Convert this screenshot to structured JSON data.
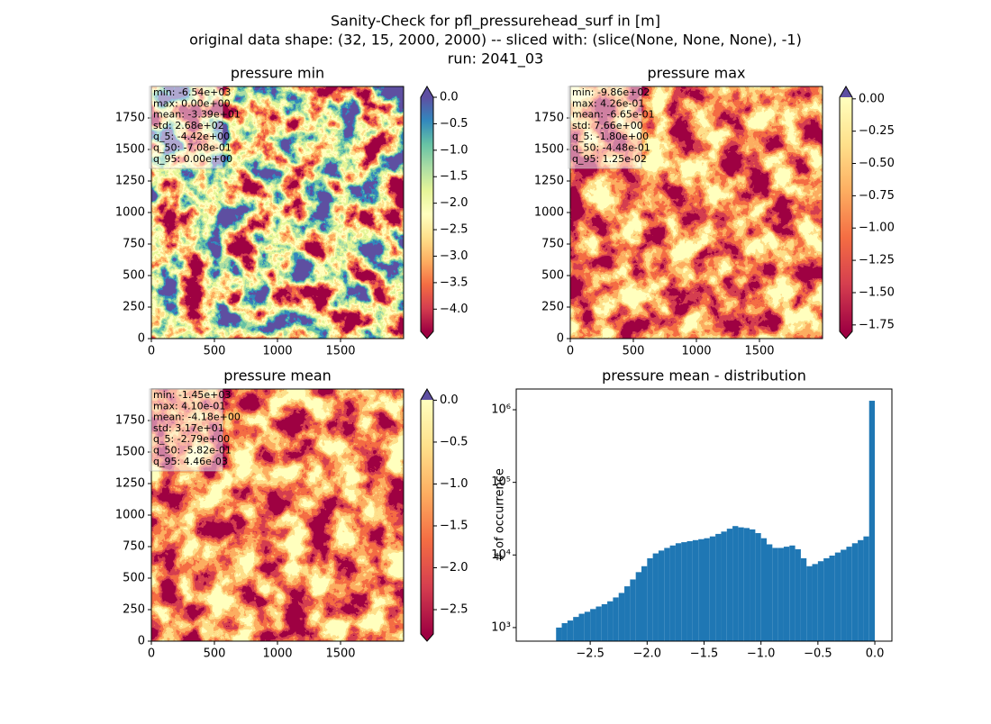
{
  "figure": {
    "title": [
      "Sanity-Check for pfl_pressurehead_surf in [m]",
      "original data shape: (32, 15, 2000, 2000) -- sliced with: (slice(None, None, None), -1)",
      "run: 2041_03"
    ]
  },
  "chart_data": [
    {
      "type": "heatmap",
      "title": "pressure min",
      "xlim": [
        0,
        2000
      ],
      "ylim": [
        0,
        2000
      ],
      "xticks": [
        0,
        500,
        1000,
        1500
      ],
      "yticks": [
        0,
        250,
        500,
        750,
        1000,
        1250,
        1500,
        1750
      ],
      "stats": [
        "min: -6.54e+03",
        "max: 0.00e+00",
        "mean: -3.39e+01",
        "std: 2.68e+02",
        "q_5: -4.42e+00",
        "q_50: -7.08e-01",
        "q_95: 0.00e+00"
      ],
      "colorbar": {
        "lim": [
          -4.42,
          0
        ],
        "ticks": [
          {
            "value": 0,
            "label": "0.0"
          },
          {
            "value": -0.5,
            "label": "−0.5"
          },
          {
            "value": -1,
            "label": "−1.0"
          },
          {
            "value": -1.5,
            "label": "−1.5"
          },
          {
            "value": -2,
            "label": "−2.0"
          },
          {
            "value": -2.5,
            "label": "−2.5"
          },
          {
            "value": -3,
            "label": "−3.0"
          },
          {
            "value": -3.5,
            "label": "−3.5"
          },
          {
            "value": -4,
            "label": "−4.0"
          }
        ],
        "colors": [
          "#9e0142",
          "#d53e4f",
          "#f46d43",
          "#fdae61",
          "#fee08b",
          "#ffffbf",
          "#e6f598",
          "#abdda4",
          "#66c2a5",
          "#3288bd",
          "#5e4fa2"
        ],
        "under": "#9e0142",
        "over": "#5e4fa2"
      }
    },
    {
      "type": "heatmap",
      "title": "pressure max",
      "xlim": [
        0,
        2000
      ],
      "ylim": [
        0,
        2000
      ],
      "xticks": [
        0,
        500,
        1000,
        1500
      ],
      "yticks": [
        0,
        250,
        500,
        750,
        1000,
        1250,
        1500,
        1750
      ],
      "stats": [
        "min: -9.86e+02",
        "max: 4.26e-01",
        "mean: -6.65e-01",
        "std: 7.66e+00",
        "q_5: -1.80e+00",
        "q_50: -4.48e-01",
        "q_95: 1.25e-02"
      ],
      "colorbar": {
        "lim": [
          -1.8,
          0.0125
        ],
        "ticks": [
          {
            "value": 0,
            "label": "0.00"
          },
          {
            "value": -0.25,
            "label": "−0.25"
          },
          {
            "value": -0.5,
            "label": "−0.50"
          },
          {
            "value": -0.75,
            "label": "−0.75"
          },
          {
            "value": -1,
            "label": "−1.00"
          },
          {
            "value": -1.25,
            "label": "−1.25"
          },
          {
            "value": -1.5,
            "label": "−1.50"
          },
          {
            "value": -1.75,
            "label": "−1.75"
          }
        ],
        "colors": [
          "#9e0142",
          "#d53e4f",
          "#f46d43",
          "#fdae61",
          "#fee08b",
          "#ffffbf"
        ],
        "under": "#9e0142",
        "over": "#5e4fa2"
      }
    },
    {
      "type": "heatmap",
      "title": "pressure mean",
      "xlim": [
        0,
        2000
      ],
      "ylim": [
        0,
        2000
      ],
      "xticks": [
        0,
        500,
        1000,
        1500
      ],
      "yticks": [
        0,
        250,
        500,
        750,
        1000,
        1250,
        1500,
        1750
      ],
      "stats": [
        "min: -1.45e+03",
        "max: 4.10e-01",
        "mean: -4.18e+00",
        "std: 3.17e+01",
        "q_5: -2.79e+00",
        "q_50: -5.82e-01",
        "q_95: 4.46e-03"
      ],
      "colorbar": {
        "lim": [
          -2.79,
          0.00446
        ],
        "ticks": [
          {
            "value": 0,
            "label": "0.0"
          },
          {
            "value": -0.5,
            "label": "−0.5"
          },
          {
            "value": -1,
            "label": "−1.0"
          },
          {
            "value": -1.5,
            "label": "−1.5"
          },
          {
            "value": -2,
            "label": "−2.0"
          },
          {
            "value": -2.5,
            "label": "−2.5"
          }
        ],
        "colors": [
          "#9e0142",
          "#d53e4f",
          "#f46d43",
          "#fdae61",
          "#fee08b",
          "#ffffbf"
        ],
        "under": "#9e0142",
        "over": "#5e4fa2"
      }
    },
    {
      "type": "histogram",
      "title": "pressure mean - distribution",
      "y_label": "# of occurrence",
      "color": "#1f77b4",
      "log_y": true,
      "xlim": [
        -3.15,
        0.15
      ],
      "ylim": [
        650,
        1930000
      ],
      "xticks": [
        {
          "value": -2.5,
          "label": "−2.5"
        },
        {
          "value": -2,
          "label": "−2.0"
        },
        {
          "value": -1.5,
          "label": "−1.5"
        },
        {
          "value": -1,
          "label": "−1.0"
        },
        {
          "value": -0.5,
          "label": "−0.5"
        },
        {
          "value": 0,
          "label": "0.0"
        }
      ],
      "yticks": [
        {
          "value": 1000,
          "label": "10³"
        },
        {
          "value": 10000,
          "label": "10⁴"
        },
        {
          "value": 100000,
          "label": "10⁵"
        },
        {
          "value": 1000000,
          "label": "10⁶"
        }
      ],
      "bins": [
        -2.8,
        -2.75,
        -2.7,
        -2.65,
        -2.6,
        -2.55,
        -2.5,
        -2.45,
        -2.4,
        -2.35,
        -2.3,
        -2.25,
        -2.2,
        -2.15,
        -2.1,
        -2.05,
        -2.0,
        -1.95,
        -1.9,
        -1.85,
        -1.8,
        -1.75,
        -1.7,
        -1.65,
        -1.6,
        -1.55,
        -1.5,
        -1.45,
        -1.4,
        -1.35,
        -1.3,
        -1.25,
        -1.2,
        -1.15,
        -1.1,
        -1.05,
        -1.0,
        -0.95,
        -0.9,
        -0.85,
        -0.8,
        -0.75,
        -0.7,
        -0.65,
        -0.6,
        -0.55,
        -0.5,
        -0.45,
        -0.4,
        -0.35,
        -0.3,
        -0.25,
        -0.2,
        -0.15,
        -0.1,
        -0.05,
        0.0
      ],
      "values": [
        1000,
        1150,
        1250,
        1400,
        1550,
        1650,
        1800,
        1950,
        2100,
        2300,
        2600,
        3000,
        3700,
        4600,
        5800,
        7000,
        9000,
        10500,
        11500,
        12500,
        13500,
        14500,
        15000,
        15500,
        16000,
        16500,
        17000,
        18000,
        19500,
        21000,
        23000,
        25000,
        24000,
        23500,
        22500,
        20000,
        17000,
        14000,
        12500,
        12500,
        13000,
        13500,
        12000,
        9000,
        7000,
        7500,
        8200,
        9000,
        9800,
        10800,
        11800,
        13000,
        14500,
        16000,
        18000,
        1330000
      ]
    }
  ]
}
